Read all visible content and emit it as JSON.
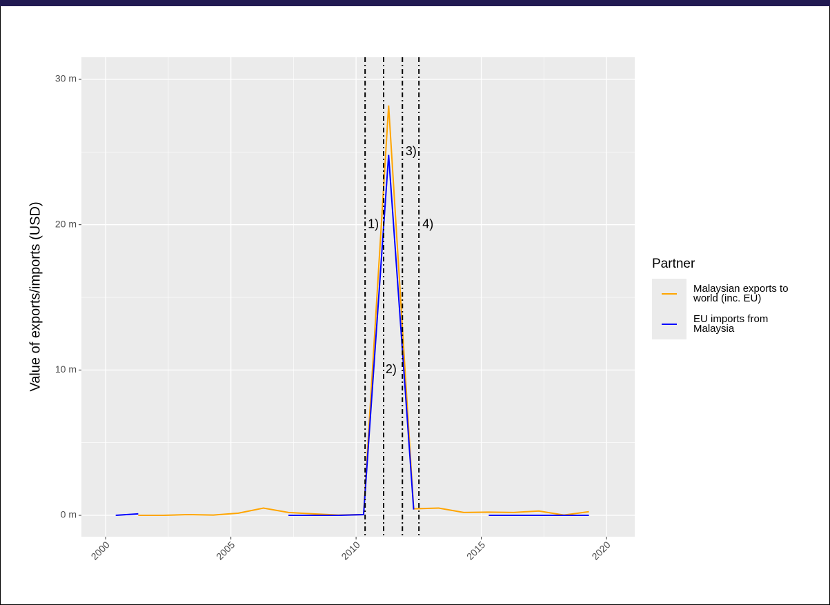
{
  "chart_data": {
    "type": "line",
    "ylabel": "Value of exports/imports (USD)",
    "legend_title": "Partner",
    "x": [
      2000.4,
      2001.3,
      2002.3,
      2003.3,
      2004.3,
      2005.3,
      2006.3,
      2007.3,
      2008.3,
      2009.3,
      2010.3,
      2011.3,
      2012.3,
      2013.3,
      2014.3,
      2015.3,
      2016.3,
      2017.3,
      2018.3,
      2019.3
    ],
    "series": [
      {
        "name": "Malaysian exports to world (inc. EU)",
        "color": "#ffa500",
        "values": [
          null,
          0,
          0,
          0.05,
          0.02,
          0.15,
          0.5,
          0.2,
          0.1,
          0.02,
          0.05,
          28.2,
          0.45,
          0.5,
          0.2,
          0.22,
          0.2,
          0.3,
          0.02,
          0.25
        ]
      },
      {
        "name": "EU imports from Malaysia",
        "color": "#0000ff",
        "values": [
          0,
          0.1,
          null,
          null,
          null,
          null,
          null,
          0,
          0,
          0,
          0.05,
          24.8,
          0.4,
          null,
          null,
          0,
          0,
          0,
          0,
          0
        ]
      }
    ],
    "xlim": [
      1999.03,
      2021.13
    ],
    "ylim": [
      -1.47,
      31.52
    ],
    "xticks": [
      2000,
      2005,
      2010,
      2015,
      2020
    ],
    "yticks": [
      {
        "value": 0,
        "label": "0 m"
      },
      {
        "value": 10,
        "label": "10 m"
      },
      {
        "value": 20,
        "label": "20 m"
      },
      {
        "value": 30,
        "label": "30 m"
      }
    ],
    "grid": true,
    "vlines": [
      2010.36,
      2011.1,
      2011.85,
      2012.51
    ],
    "annotations": [
      {
        "text": "1)",
        "x": 2010.69,
        "y": 20
      },
      {
        "text": "2)",
        "x": 2011.4,
        "y": 10
      },
      {
        "text": "3)",
        "x": 2012.2,
        "y": 25
      },
      {
        "text": "4)",
        "x": 2012.87,
        "y": 20
      }
    ]
  }
}
